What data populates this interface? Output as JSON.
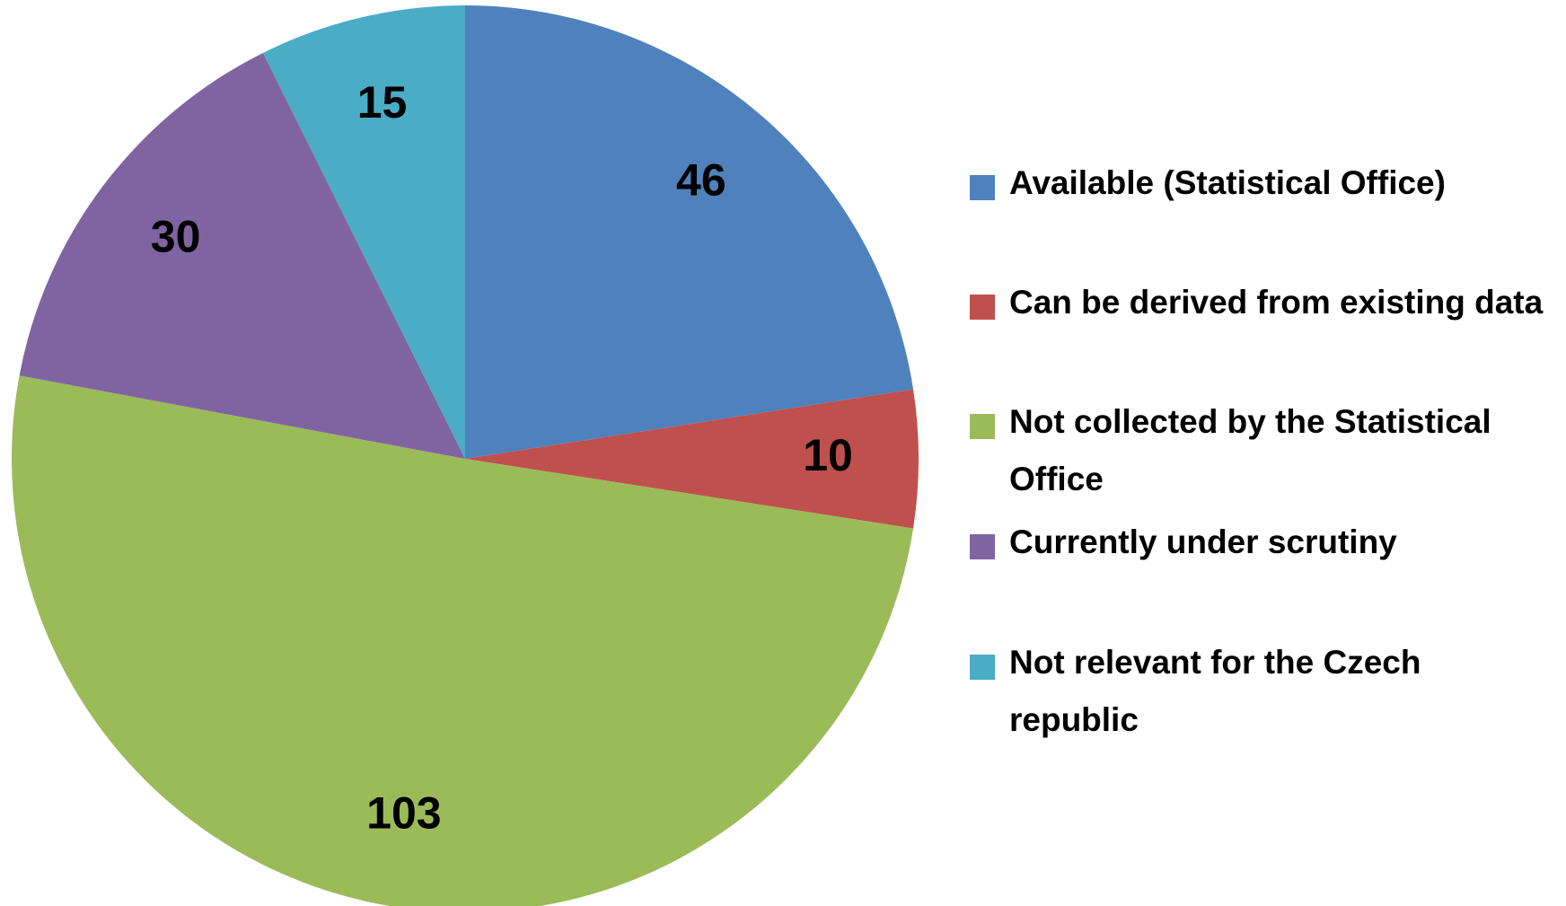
{
  "chart_data": {
    "type": "pie",
    "categories": [
      "Available (Statistical Office)",
      "Can be derived from existing data",
      "Not collected by the Statistical Office",
      "Currently under scrutiny",
      "Not relevant for the Czech republic"
    ],
    "values": [
      46,
      10,
      103,
      30,
      15
    ],
    "colors": [
      "#4f81bd",
      "#c0504d",
      "#9bbb59",
      "#8064a2",
      "#4bacc6"
    ],
    "legend": "right"
  }
}
